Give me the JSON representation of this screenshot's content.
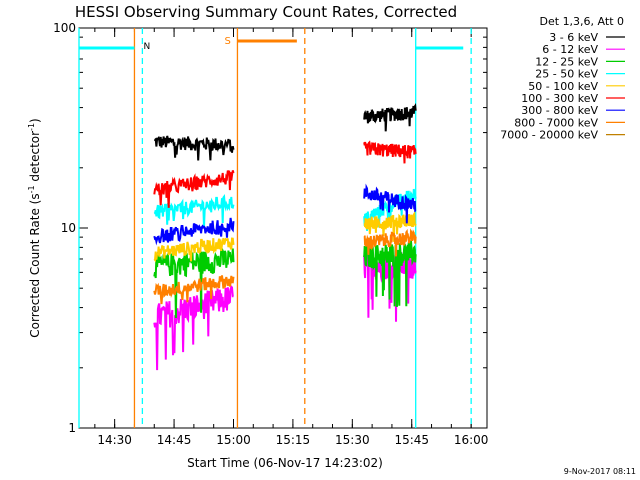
{
  "chart_data": {
    "type": "line",
    "title": "HESSI Observing Summary Count Rates, Corrected",
    "xlabel": "Start Time (06-Nov-17 14:23:02)",
    "ylabel": "Corrected Count Rate (s⁻¹ detector⁻¹)",
    "ylabel_parts": {
      "main": "Corrected Count Rate (s",
      "sup1": "-1",
      "mid": " detector",
      "sup2": "-1",
      "end": ")"
    },
    "yscale": "log",
    "ylim": [
      1,
      100
    ],
    "xlim_minutes": [
      -2,
      101
    ],
    "x_ticks": [
      {
        "label": "14:30",
        "min": 7
      },
      {
        "label": "14:45",
        "min": 22
      },
      {
        "label": "15:00",
        "min": 37
      },
      {
        "label": "15:15",
        "min": 52
      },
      {
        "label": "15:30",
        "min": 67
      },
      {
        "label": "15:45",
        "min": 82
      },
      {
        "label": "16:00",
        "min": 97
      }
    ],
    "y_ticks": [
      {
        "label": "1",
        "value": 1
      },
      {
        "label": "10",
        "value": 10
      },
      {
        "label": "100",
        "value": 100
      }
    ],
    "legend_title": "Det 1,3,6, Att 0",
    "legend_position": "right",
    "series": [
      {
        "name": "3 - 6 keV",
        "color": "#000000",
        "segments": [
          [
            27,
            26
          ],
          [
            36,
            38
          ]
        ]
      },
      {
        "name": "6 - 12 keV",
        "color": "#ff00ff",
        "segments": [
          [
            3.6,
            4.5
          ],
          [
            6.5,
            6.6
          ]
        ]
      },
      {
        "name": "12 - 25 keV",
        "color": "#00cc00",
        "segments": [
          [
            6.5,
            7.0
          ],
          [
            7.2,
            7.6
          ]
        ]
      },
      {
        "name": "25 - 50 keV",
        "color": "#00ffff",
        "segments": [
          [
            12,
            13.5
          ],
          [
            11,
            15
          ]
        ]
      },
      {
        "name": "50 - 100 keV",
        "color": "#ffcc00",
        "segments": [
          [
            7.5,
            8.5
          ],
          [
            10.5,
            11
          ]
        ]
      },
      {
        "name": "100 - 300 keV",
        "color": "#ff0000",
        "segments": [
          [
            15.5,
            18
          ],
          [
            25,
            24
          ]
        ]
      },
      {
        "name": "300 - 800 keV",
        "color": "#0000ff",
        "segments": [
          [
            9.0,
            10.5
          ],
          [
            15,
            13
          ]
        ]
      },
      {
        "name": "800 - 7000 keV",
        "color": "#ff8000",
        "segments": [
          [
            4.8,
            5.5
          ],
          [
            8.5,
            9
          ]
        ]
      },
      {
        "name": "7000 - 20000 keV",
        "color": "#c08000",
        "segments": [
          [
            null,
            null
          ],
          [
            null,
            null
          ]
        ]
      }
    ],
    "data_intervals_minutes": [
      [
        17,
        37
      ],
      [
        70,
        83
      ]
    ],
    "night_bars": [
      {
        "label": "",
        "x": [
          -2,
          12
        ]
      },
      {
        "label": "N",
        "x": [
          12,
          12
        ]
      },
      {
        "label": "",
        "x": [
          83,
          95
        ]
      }
    ],
    "saa_bar": {
      "label": "S",
      "x": [
        38,
        53
      ]
    },
    "markers": {
      "cyan_solid": [
        -2,
        83
      ],
      "cyan_dashed": [
        14,
        97
      ],
      "orange_solid": [
        12,
        38
      ],
      "orange_dashed": [
        55
      ]
    },
    "footer_date": "9-Nov-2017 08:11",
    "colors": {
      "night": "#00ffff",
      "saa": "#ff8000",
      "axis": "#000000"
    }
  }
}
